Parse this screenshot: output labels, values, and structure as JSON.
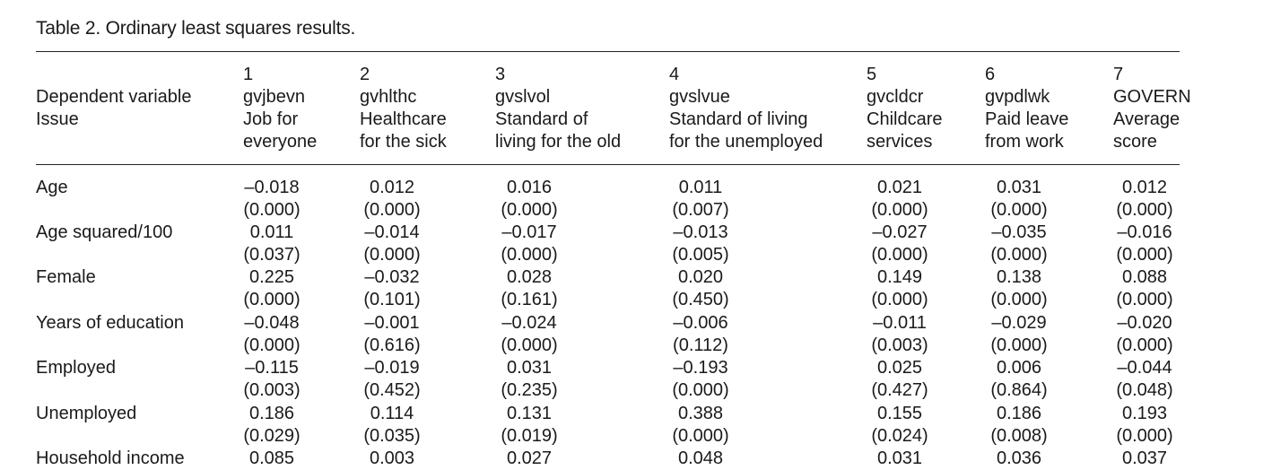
{
  "caption": "Table 2.  Ordinary least squares results.",
  "header": {
    "left_lines": [
      "Dependent variable",
      "Issue"
    ],
    "columns": [
      {
        "num": "1",
        "var": "gvjbevn",
        "issue": [
          "Job for",
          "everyone"
        ]
      },
      {
        "num": "2",
        "var": "gvhlthc",
        "issue": [
          "Healthcare",
          "for the sick"
        ]
      },
      {
        "num": "3",
        "var": "gvslvol",
        "issue": [
          "Standard of",
          "living for the old"
        ]
      },
      {
        "num": "4",
        "var": "gvslvue",
        "issue": [
          "Standard of living",
          "for the unemployed"
        ]
      },
      {
        "num": "5",
        "var": "gvcldcr",
        "issue": [
          "Childcare",
          "services"
        ]
      },
      {
        "num": "6",
        "var": "gvpdlwk",
        "issue": [
          "Paid leave",
          "from work"
        ]
      },
      {
        "num": "7",
        "var": "GOVERN",
        "issue": [
          "Average",
          "score"
        ]
      }
    ]
  },
  "rows": [
    {
      "label": "Age",
      "coef": [
        "–0.018",
        "0.012",
        "0.016",
        "0.011",
        "0.021",
        "0.031",
        "0.012"
      ],
      "pval": [
        "(0.000)",
        "(0.000)",
        "(0.000)",
        "(0.007)",
        "(0.000)",
        "(0.000)",
        "(0.000)"
      ]
    },
    {
      "label": "Age squared/100",
      "coef": [
        "0.011",
        "–0.014",
        "–0.017",
        "–0.013",
        "–0.027",
        "–0.035",
        "–0.016"
      ],
      "pval": [
        "(0.037)",
        "(0.000)",
        "(0.000)",
        "(0.005)",
        "(0.000)",
        "(0.000)",
        "(0.000)"
      ]
    },
    {
      "label": "Female",
      "coef": [
        "0.225",
        "–0.032",
        "0.028",
        "0.020",
        "0.149",
        "0.138",
        "0.088"
      ],
      "pval": [
        "(0.000)",
        "(0.101)",
        "(0.161)",
        "(0.450)",
        "(0.000)",
        "(0.000)",
        "(0.000)"
      ]
    },
    {
      "label": "Years of education",
      "coef": [
        "–0.048",
        "–0.001",
        "–0.024",
        "–0.006",
        "–0.011",
        "–0.029",
        "–0.020"
      ],
      "pval": [
        "(0.000)",
        "(0.616)",
        "(0.000)",
        "(0.112)",
        "(0.003)",
        "(0.000)",
        "(0.000)"
      ]
    },
    {
      "label": "Employed",
      "coef": [
        "–0.115",
        "–0.019",
        "0.031",
        "–0.193",
        "0.025",
        "0.006",
        "–0.044"
      ],
      "pval": [
        "(0.003)",
        "(0.452)",
        "(0.235)",
        "(0.000)",
        "(0.427)",
        "(0.864)",
        "(0.048)"
      ]
    },
    {
      "label": "Unemployed",
      "coef": [
        "0.186",
        "0.114",
        "0.131",
        "0.388",
        "0.155",
        "0.186",
        "0.193"
      ],
      "pval": [
        "(0.029)",
        "(0.035)",
        "(0.019)",
        "(0.000)",
        "(0.024)",
        "(0.008)",
        "(0.000)"
      ]
    },
    {
      "label": "Household income",
      "coef": [
        "0.085",
        "0.003",
        "0.027",
        "0.048",
        "0.031",
        "0.036",
        "0.037"
      ],
      "pval": [
        "",
        "",
        "",
        "",
        "",
        "",
        ""
      ]
    }
  ]
}
